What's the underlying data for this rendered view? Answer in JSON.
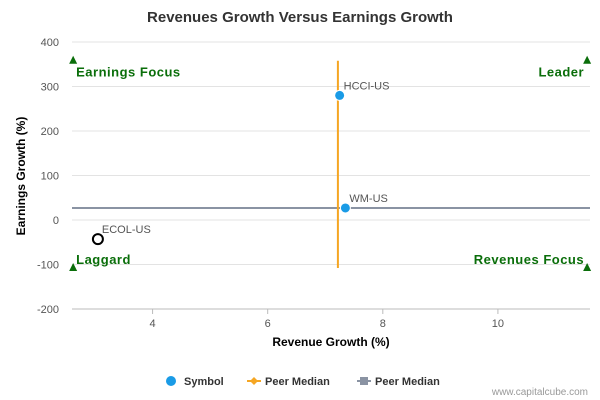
{
  "chart_data": {
    "type": "scatter",
    "title": "Revenues Growth Versus Earnings Growth",
    "xlabel": "Revenue Growth (%)",
    "ylabel": "Earnings Growth (%)",
    "xlim": [
      2.6,
      11.6
    ],
    "ylim": [
      -200,
      400
    ],
    "xticks": [
      4,
      6,
      8,
      10
    ],
    "yticks": [
      -200,
      -100,
      0,
      100,
      200,
      300,
      400
    ],
    "grid": "horizontal",
    "points": [
      {
        "label": "HCCI-US",
        "x": 7.25,
        "y": 280,
        "style": "filled",
        "color": "#1a9be6"
      },
      {
        "label": "WM-US",
        "x": 7.35,
        "y": 27,
        "style": "filled",
        "color": "#1a9be6"
      },
      {
        "label": "ECOL-US",
        "x": 3.05,
        "y": -43,
        "style": "hollow",
        "color": "#000000"
      }
    ],
    "peer_median_x": {
      "name": "Peer Median",
      "value": 7.22,
      "y_range": [
        -108,
        358
      ],
      "color": "#f5a623"
    },
    "peer_median_y": {
      "name": "Peer Median",
      "value": 27,
      "x_range": [
        2.6,
        11.6
      ],
      "color": "#8a93a3"
    },
    "quadrants": [
      {
        "label": "Earnings Focus",
        "corner": "top-left",
        "marker_x": 2.62,
        "marker_y": 358
      },
      {
        "label": "Leader",
        "corner": "top-right",
        "marker_x": 11.55,
        "marker_y": 358
      },
      {
        "label": "Laggard",
        "corner": "bottom-left",
        "marker_x": 2.62,
        "marker_y": -108
      },
      {
        "label": "Revenues Focus",
        "corner": "bottom-right",
        "marker_x": 11.55,
        "marker_y": -108
      }
    ],
    "legend": {
      "placement": "bottom-center",
      "items": [
        {
          "label": "Symbol",
          "symbol": "circle",
          "color": "#1a9be6"
        },
        {
          "label": "Peer Median",
          "symbol": "diamond-line",
          "color": "#f5a623"
        },
        {
          "label": "Peer Median",
          "symbol": "square-line",
          "color": "#8a93a3"
        }
      ]
    },
    "credit": "www.capitalcube.com",
    "quadrant_color": "#0a6e0a"
  }
}
